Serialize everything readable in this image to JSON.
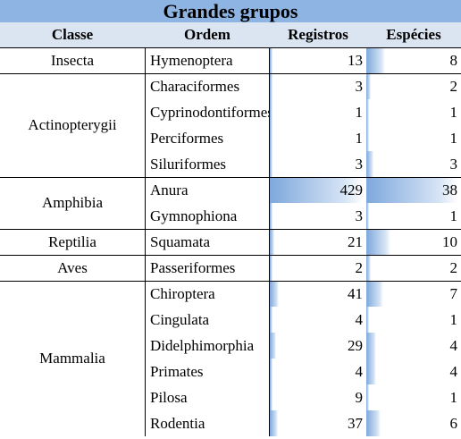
{
  "title": "Grandes grupos",
  "headers": {
    "classe": "Classe",
    "ordem": "Ordem",
    "registros": "Registros",
    "especies": "Espécies"
  },
  "groups": [
    {
      "classe": "Insecta",
      "rows": [
        {
          "ordem": "Hymenoptera",
          "registros": 13,
          "especies": 8
        }
      ]
    },
    {
      "classe": "Actinopterygii",
      "rows": [
        {
          "ordem": "Characiformes",
          "registros": 3,
          "especies": 2
        },
        {
          "ordem": "Cyprinodontiformes",
          "registros": 1,
          "especies": 1
        },
        {
          "ordem": "Perciformes",
          "registros": 1,
          "especies": 1
        },
        {
          "ordem": "Siluriformes",
          "registros": 3,
          "especies": 3
        }
      ]
    },
    {
      "classe": "Amphibia",
      "rows": [
        {
          "ordem": "Anura",
          "registros": 429,
          "especies": 38
        },
        {
          "ordem": "Gymnophiona",
          "registros": 3,
          "especies": 1
        }
      ]
    },
    {
      "classe": "Reptilia",
      "rows": [
        {
          "ordem": "Squamata",
          "registros": 21,
          "especies": 10
        }
      ]
    },
    {
      "classe": "Aves",
      "rows": [
        {
          "ordem": "Passeriformes",
          "registros": 2,
          "especies": 2
        }
      ]
    },
    {
      "classe": "Mammalia",
      "rows": [
        {
          "ordem": "Chiroptera",
          "registros": 41,
          "especies": 7
        },
        {
          "ordem": "Cingulata",
          "registros": 4,
          "especies": 1
        },
        {
          "ordem": "Didelphimorphia",
          "registros": 29,
          "especies": 4
        },
        {
          "ordem": "Primates",
          "registros": 4,
          "especies": 4
        },
        {
          "ordem": "Pilosa",
          "registros": 9,
          "especies": 1
        },
        {
          "ordem": "Rodentia",
          "registros": 37,
          "especies": 6
        }
      ]
    }
  ],
  "colors": {
    "title_bg": "#8eb4e3",
    "header_bg": "#dbe5f1",
    "bar": "#7ea8dc"
  }
}
